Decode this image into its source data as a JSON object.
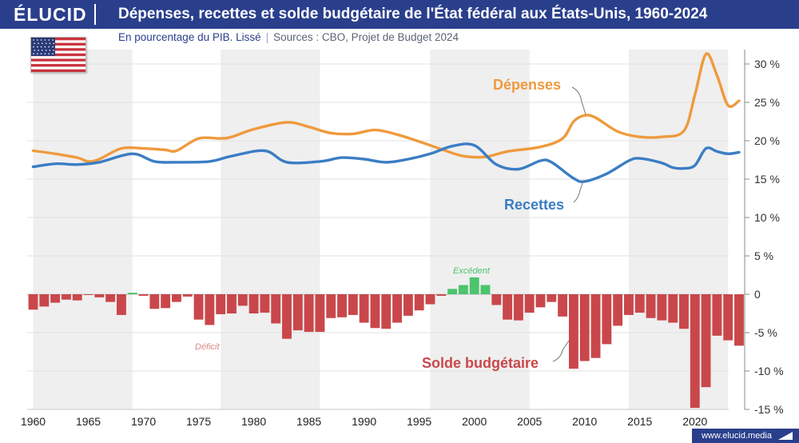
{
  "brand": {
    "logo": "ÉLUCID",
    "url": "www.elucid.media"
  },
  "header": {
    "title": "Dépenses, recettes et solde budgétaire de l'État fédéral aux États-Unis, 1960-2024",
    "subtitle": "En pourcentage du PIB. Lissé",
    "sources": "Sources : CBO, Projet de Budget 2024"
  },
  "flag": {
    "name": "us-flag-icon"
  },
  "colors": {
    "header_bg": "#2a3f8c",
    "depenses": "#ef9a3d",
    "recettes": "#3b7dc4",
    "deficit": "#c9474b",
    "surplus": "#4cc46c",
    "band": "#efefef"
  },
  "chart_data": {
    "type": "line",
    "title": "Dépenses, recettes et solde budgétaire de l'État fédéral aux États-Unis, 1960-2024",
    "subtitle": "En pourcentage du PIB. Lissé",
    "x_range": [
      1960,
      2024
    ],
    "ylim": [
      -15,
      32
    ],
    "y_ticks": [
      -15,
      -10,
      -5,
      0,
      5,
      10,
      15,
      20,
      25,
      30
    ],
    "y_tick_labels": [
      "-15 %",
      "-10 %",
      "-5 %",
      "0",
      "5 %",
      "10 %",
      "15 %",
      "20 %",
      "25 %",
      "30 %"
    ],
    "x_ticks": [
      1960,
      1965,
      1970,
      1975,
      1980,
      1985,
      1990,
      1995,
      2000,
      2005,
      2010,
      2015,
      2020
    ],
    "grid": true,
    "recession_bands": [
      [
        1960,
        1969
      ],
      [
        1977,
        1986
      ],
      [
        1996,
        2005
      ],
      [
        2014,
        2023
      ]
    ],
    "series": [
      {
        "name": "Dépenses",
        "type": "line",
        "color": "#ef9a3d",
        "points": [
          [
            1960,
            18.7
          ],
          [
            1962,
            18.3
          ],
          [
            1964,
            17.8
          ],
          [
            1965,
            17.3
          ],
          [
            1966,
            17.6
          ],
          [
            1968,
            19.0
          ],
          [
            1970,
            19.0
          ],
          [
            1972,
            18.8
          ],
          [
            1973,
            18.7
          ],
          [
            1975,
            20.3
          ],
          [
            1977,
            20.3
          ],
          [
            1978,
            20.5
          ],
          [
            1980,
            21.5
          ],
          [
            1983,
            22.4
          ],
          [
            1985,
            21.8
          ],
          [
            1987,
            21.0
          ],
          [
            1989,
            20.9
          ],
          [
            1991,
            21.4
          ],
          [
            1993,
            20.8
          ],
          [
            1995,
            19.9
          ],
          [
            1997,
            18.9
          ],
          [
            1999,
            18.0
          ],
          [
            2001,
            17.9
          ],
          [
            2003,
            18.6
          ],
          [
            2006,
            19.2
          ],
          [
            2008,
            20.3
          ],
          [
            2009,
            22.5
          ],
          [
            2010,
            23.3
          ],
          [
            2011,
            23.0
          ],
          [
            2013,
            21.2
          ],
          [
            2015,
            20.5
          ],
          [
            2017,
            20.5
          ],
          [
            2019,
            21.3
          ],
          [
            2020,
            26.0
          ],
          [
            2021,
            31.3
          ],
          [
            2022,
            28.5
          ],
          [
            2023,
            24.6
          ],
          [
            2024,
            25.2
          ]
        ]
      },
      {
        "name": "Recettes",
        "type": "line",
        "color": "#3b7dc4",
        "points": [
          [
            1960,
            16.6
          ],
          [
            1962,
            17.0
          ],
          [
            1964,
            16.9
          ],
          [
            1966,
            17.2
          ],
          [
            1969,
            18.3
          ],
          [
            1971,
            17.3
          ],
          [
            1973,
            17.2
          ],
          [
            1976,
            17.3
          ],
          [
            1978,
            18.0
          ],
          [
            1981,
            18.7
          ],
          [
            1983,
            17.2
          ],
          [
            1986,
            17.3
          ],
          [
            1988,
            17.8
          ],
          [
            1990,
            17.6
          ],
          [
            1992,
            17.2
          ],
          [
            1994,
            17.6
          ],
          [
            1996,
            18.3
          ],
          [
            1998,
            19.3
          ],
          [
            2000,
            19.4
          ],
          [
            2002,
            16.9
          ],
          [
            2004,
            16.3
          ],
          [
            2006,
            17.4
          ],
          [
            2007,
            17.2
          ],
          [
            2009,
            15.1
          ],
          [
            2010,
            14.7
          ],
          [
            2012,
            15.7
          ],
          [
            2014,
            17.4
          ],
          [
            2015,
            17.7
          ],
          [
            2017,
            17.1
          ],
          [
            2018,
            16.5
          ],
          [
            2019,
            16.4
          ],
          [
            2020,
            16.8
          ],
          [
            2021,
            19.0
          ],
          [
            2022,
            18.6
          ],
          [
            2023,
            18.3
          ],
          [
            2024,
            18.5
          ]
        ]
      },
      {
        "name": "Solde budgétaire",
        "type": "bar",
        "years": [
          1960,
          1961,
          1962,
          1963,
          1964,
          1965,
          1966,
          1967,
          1968,
          1969,
          1970,
          1971,
          1972,
          1973,
          1974,
          1975,
          1976,
          1977,
          1978,
          1979,
          1980,
          1981,
          1982,
          1983,
          1984,
          1985,
          1986,
          1987,
          1988,
          1989,
          1990,
          1991,
          1992,
          1993,
          1994,
          1995,
          1996,
          1997,
          1998,
          1999,
          2000,
          2001,
          2002,
          2003,
          2004,
          2005,
          2006,
          2007,
          2008,
          2009,
          2010,
          2011,
          2012,
          2013,
          2014,
          2015,
          2016,
          2017,
          2018,
          2019,
          2020,
          2021,
          2022,
          2023,
          2024
        ],
        "values": [
          -2.0,
          -1.6,
          -1.1,
          -0.7,
          -0.8,
          -0.1,
          -0.4,
          -1.0,
          -2.7,
          0.2,
          -0.2,
          -1.9,
          -1.8,
          -1.0,
          -0.3,
          -3.3,
          -4.0,
          -2.6,
          -2.5,
          -1.5,
          -2.5,
          -2.4,
          -3.8,
          -5.8,
          -4.7,
          -4.9,
          -4.9,
          -3.1,
          -3.0,
          -2.7,
          -3.7,
          -4.4,
          -4.5,
          -3.7,
          -2.8,
          -2.1,
          -1.3,
          -0.2,
          0.7,
          1.2,
          2.2,
          1.2,
          -1.4,
          -3.3,
          -3.4,
          -2.4,
          -1.7,
          -1.0,
          -2.9,
          -9.7,
          -8.7,
          -8.3,
          -6.5,
          -4.1,
          -2.7,
          -2.4,
          -3.1,
          -3.4,
          -3.7,
          -4.5,
          -14.8,
          -12.1,
          -5.4,
          -6.0,
          -6.7
        ]
      }
    ],
    "annotations": [
      {
        "key": "depenses",
        "text": "Dépenses",
        "color": "#ef9a3d"
      },
      {
        "key": "recettes",
        "text": "Recettes",
        "color": "#3b7dc4"
      },
      {
        "key": "solde",
        "text": "Solde budgétaire",
        "color": "#c9474b"
      },
      {
        "key": "excedent",
        "text": "Excédent",
        "color": "#4cc46c"
      },
      {
        "key": "deficit",
        "text": "Déficit",
        "color": "#d98a88"
      }
    ]
  }
}
